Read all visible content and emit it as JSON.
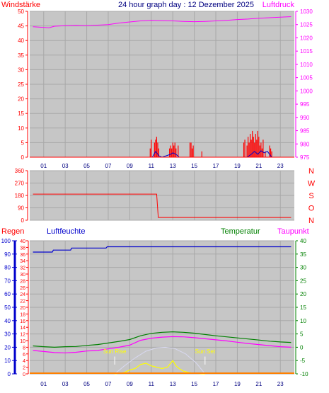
{
  "colors": {
    "background": "#ffffff",
    "plot_bg": "#c6c6c6",
    "grid": "#a8a8a8",
    "wind": "#ff0000",
    "gust": "#0000cc",
    "pressure": "#ff00ff",
    "direction": "#ff0000",
    "rain": "#ff0000",
    "humidity": "#0000cc",
    "temperature": "#008000",
    "dewpoint": "#ff00ff",
    "solar": "#ffff00",
    "solar_max": "#d8d8f0",
    "hour_labels": "#000080"
  },
  "x_ticks": [
    "01",
    "03",
    "05",
    "07",
    "09",
    "11",
    "13",
    "15",
    "17",
    "19",
    "21",
    "23"
  ],
  "chart_data": [
    {
      "type": "line",
      "title": "24 hour graph day : 12 Dezember 2025",
      "left_label": "Windstärke",
      "right_label": "Luftdruck",
      "left_ticks": [
        "0",
        "5",
        "10",
        "15",
        "20",
        "25",
        "30",
        "35",
        "40",
        "45",
        "50"
      ],
      "right_ticks": [
        "975",
        "980",
        "985",
        "990",
        "995",
        "1000",
        "1005",
        "1010",
        "1015",
        "1020",
        "1025",
        "1030"
      ],
      "ylim_left": [
        0,
        50
      ],
      "ylim_right": [
        975,
        1030
      ],
      "xlim_hours": [
        -0.3,
        24.3
      ],
      "series": [
        {
          "id": "pressure",
          "axis": "right",
          "x": [
            0,
            1,
            1.5,
            2,
            3,
            4,
            5,
            6,
            7,
            8,
            9,
            10,
            11,
            12,
            13,
            14,
            15,
            16,
            17,
            18,
            19,
            20,
            21,
            22,
            23,
            24
          ],
          "values": [
            1024.2,
            1023.9,
            1023.8,
            1024.4,
            1024.6,
            1024.7,
            1024.6,
            1024.8,
            1025.0,
            1025.6,
            1026.0,
            1026.4,
            1026.6,
            1026.5,
            1026.4,
            1026.2,
            1026.1,
            1026.2,
            1026.4,
            1026.6,
            1026.9,
            1027.1,
            1027.4,
            1027.6,
            1027.8,
            1028.0
          ]
        },
        {
          "id": "wind_gust",
          "axis": "left",
          "kind": "bars",
          "x": [
            10.9,
            11.0,
            11.3,
            11.4,
            11.5,
            11.6,
            11.7,
            12.7,
            12.8,
            12.9,
            13.0,
            13.1,
            13.2,
            13.3,
            13.5,
            14.6,
            14.7,
            14.8,
            14.9,
            15.7,
            19.6,
            19.7,
            19.9,
            20.0,
            20.1,
            20.2,
            20.3,
            20.4,
            20.5,
            20.6,
            20.7,
            20.8,
            20.9,
            21.0,
            21.1,
            21.2,
            21.3,
            21.4,
            21.6,
            22.0,
            22.1,
            22.2
          ],
          "values": [
            3,
            6,
            5,
            6,
            7,
            5,
            3,
            3,
            4,
            3,
            5,
            4,
            5,
            3,
            4,
            5,
            5,
            3,
            4,
            2,
            5,
            6,
            4,
            7,
            5,
            8,
            6,
            9,
            7,
            5,
            8,
            6,
            9,
            7,
            4,
            5,
            3,
            6,
            2,
            4,
            3,
            2
          ]
        },
        {
          "id": "wind_avg",
          "axis": "left",
          "x": [
            0,
            11.1,
            11.4,
            11.7,
            12.0,
            12.8,
            13.0,
            13.3,
            13.6,
            19.9,
            20.3,
            20.6,
            20.9,
            21.2,
            21.5,
            21.8,
            22.2,
            24
          ],
          "values": [
            0,
            0,
            2,
            0.5,
            0,
            1,
            1.5,
            1,
            0,
            0,
            1,
            2,
            1,
            2.2,
            1.5,
            2,
            0,
            0
          ]
        }
      ]
    },
    {
      "type": "line",
      "left_ticks": [
        "0",
        "90",
        "180",
        "270",
        "360"
      ],
      "right_ticks": [
        "N",
        "O",
        "S",
        "W",
        "N"
      ],
      "ylim": [
        0,
        360
      ],
      "series": [
        {
          "id": "wind_direction",
          "x": [
            0,
            11.5,
            11.65,
            24
          ],
          "values": [
            190,
            190,
            20,
            20
          ]
        }
      ]
    },
    {
      "type": "line",
      "left_label": "Regen",
      "mid_label": "Luftfeuchte",
      "temp_label": "Temperatur",
      "right_label": "Taupunkt",
      "humidity_ticks": [
        "0",
        "10",
        "20",
        "30",
        "40",
        "50",
        "60",
        "70",
        "80",
        "90",
        "100"
      ],
      "rain_ticks": [
        "0",
        "2",
        "4",
        "6",
        "8",
        "10",
        "12",
        "14",
        "16",
        "18",
        "20",
        "22",
        "24",
        "26",
        "28",
        "30",
        "32",
        "34",
        "36",
        "38",
        "40"
      ],
      "temp_ticks": [
        "-10",
        "-5",
        "0",
        "5",
        "10",
        "15",
        "20",
        "25",
        "30",
        "35",
        "40"
      ],
      "ylim_humidity": [
        0,
        100
      ],
      "ylim_rain": [
        0,
        40
      ],
      "ylim_temp": [
        -10,
        40
      ],
      "annotations": [
        {
          "text": "Sun Rise",
          "hour": 7.6
        },
        {
          "text": "Sun Set",
          "hour": 16.0
        }
      ],
      "series": [
        {
          "id": "humidity",
          "axis": "humidity",
          "x": [
            0,
            1.8,
            1.9,
            3.5,
            3.6,
            6.8,
            6.9,
            24
          ],
          "values": [
            91.5,
            91.5,
            93,
            93,
            94.5,
            94.5,
            95.5,
            95.5
          ]
        },
        {
          "id": "temperature",
          "axis": "temp",
          "x": [
            0,
            1,
            2,
            3,
            4,
            5,
            6,
            7,
            8,
            9,
            10,
            11,
            12,
            13,
            14,
            15,
            16,
            17,
            18,
            19,
            20,
            21,
            22,
            23,
            24
          ],
          "values": [
            0.5,
            0.2,
            0.0,
            0.2,
            0.3,
            0.7,
            1.0,
            1.6,
            2.2,
            2.9,
            4.3,
            5.2,
            5.6,
            5.8,
            5.6,
            5.3,
            4.8,
            4.3,
            3.9,
            3.5,
            3.1,
            2.7,
            2.3,
            2.0,
            1.8
          ]
        },
        {
          "id": "dewpoint",
          "axis": "temp",
          "x": [
            0,
            1,
            2,
            3,
            4,
            5,
            6,
            7,
            8,
            9,
            10,
            11,
            12,
            13,
            14,
            15,
            16,
            17,
            18,
            19,
            20,
            21,
            22,
            23,
            24
          ],
          "values": [
            -1.2,
            -1.6,
            -2.0,
            -2.1,
            -1.9,
            -1.4,
            -1.2,
            -0.6,
            0.0,
            0.8,
            2.6,
            3.4,
            3.8,
            4.0,
            3.9,
            3.6,
            3.2,
            2.8,
            2.4,
            1.9,
            1.4,
            1.0,
            0.6,
            0.2,
            0.0
          ]
        },
        {
          "id": "solar_max",
          "axis": "humidity",
          "x": [
            7.6,
            8.5,
            9.5,
            10.5,
            11.5,
            12.3,
            13.2,
            14.2,
            15.2,
            16.0
          ],
          "values": [
            0,
            6,
            12,
            17,
            19.5,
            20,
            19,
            15,
            8,
            0
          ]
        },
        {
          "id": "solar",
          "axis": "humidity",
          "x": [
            7.6,
            8.5,
            9.0,
            9.5,
            10.0,
            10.5,
            11.0,
            11.5,
            12.0,
            12.5,
            13.0,
            13.3,
            13.6,
            14.0,
            14.5,
            15.0,
            16.0
          ],
          "values": [
            0,
            1,
            3,
            4,
            7,
            8,
            6,
            5,
            4,
            5,
            10,
            6,
            4,
            2,
            1,
            0.5,
            0
          ]
        },
        {
          "id": "rain",
          "axis": "rain",
          "x": [
            0,
            24
          ],
          "values": [
            0,
            0
          ]
        }
      ]
    }
  ]
}
